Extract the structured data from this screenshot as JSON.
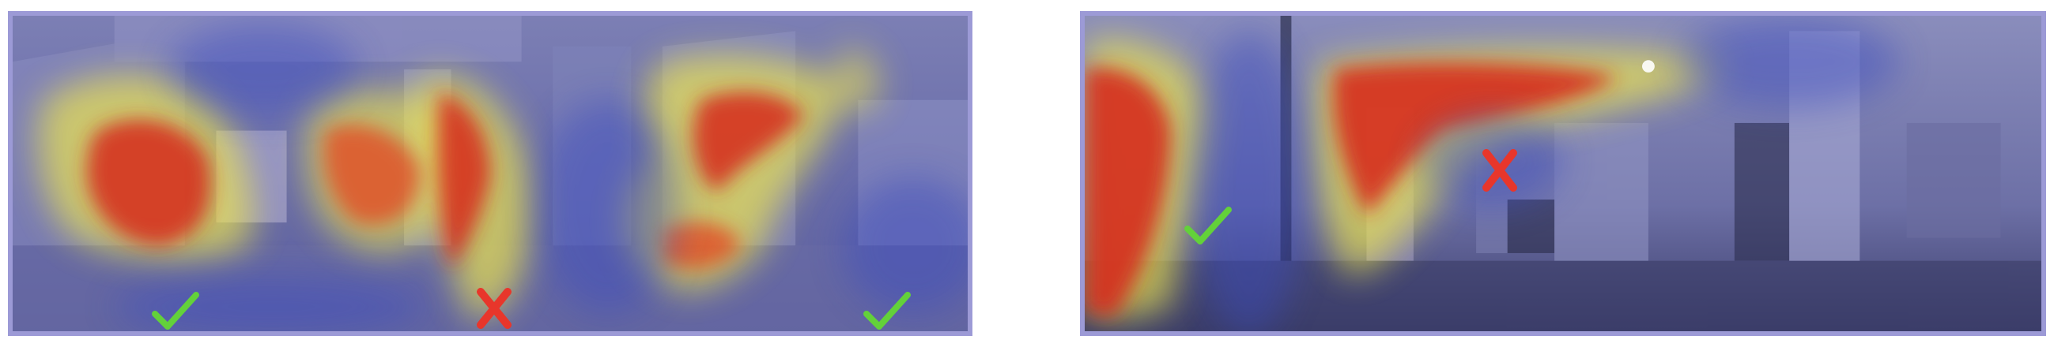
{
  "panels": [
    {
      "id": "left",
      "scene": "indoor-office-corridor-panorama",
      "markers": [
        {
          "type": "correct",
          "icon": "checkmark-icon",
          "color": "#63d13a"
        },
        {
          "type": "incorrect",
          "icon": "cross-icon",
          "color": "#e8362b"
        },
        {
          "type": "correct",
          "icon": "checkmark-icon",
          "color": "#63d13a"
        }
      ]
    },
    {
      "id": "right",
      "scene": "indoor-lobby-hallway-panorama",
      "markers": [
        {
          "type": "correct",
          "icon": "checkmark-icon",
          "color": "#63d13a"
        },
        {
          "type": "incorrect",
          "icon": "cross-icon",
          "color": "#e8362b"
        }
      ]
    }
  ],
  "colors": {
    "frame": "#9c9ad6",
    "heat_low": "#3b4cc0",
    "heat_mid": "#f2e84a",
    "heat_high": "#d62a1a",
    "check": "#63d13a",
    "cross": "#e8362b"
  }
}
